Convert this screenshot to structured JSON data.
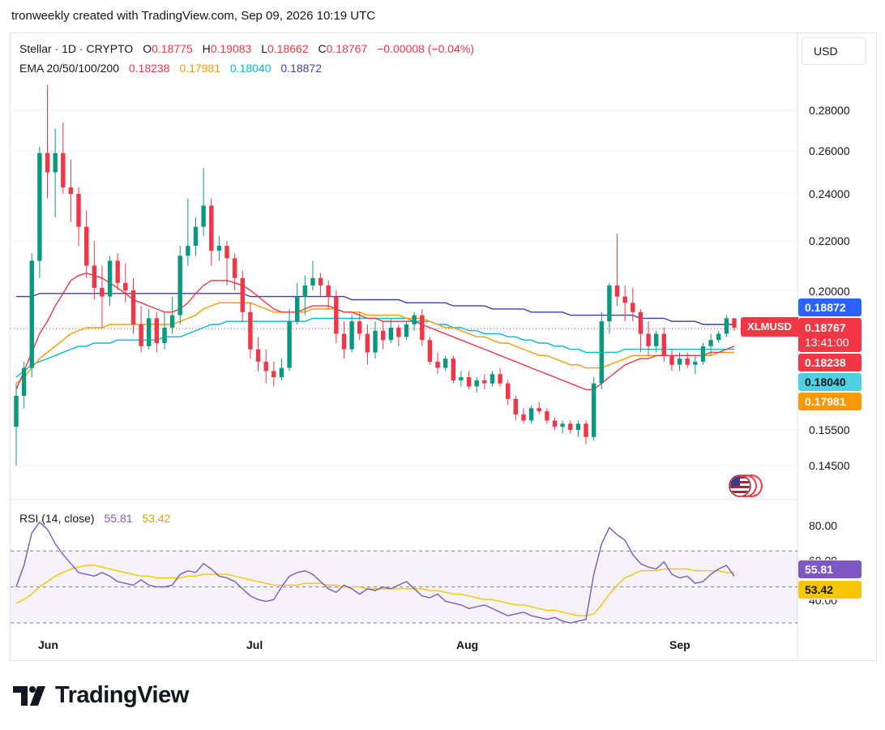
{
  "header": {
    "text": "tronweekly created with TradingView.com, Sep 09, 2026 10:19 UTC"
  },
  "legend": {
    "symbol": "Stellar · 1D · CRYPTO",
    "open_label": "O",
    "open": "0.18775",
    "high_label": "H",
    "high": "0.19083",
    "low_label": "L",
    "low": "0.18662",
    "close_label": "C",
    "close": "0.18767",
    "change": "−0.00008 (−0.04%)",
    "ema_label": "EMA 20/50/100/200",
    "ema20": "0.18238",
    "ema50": "0.17981",
    "ema100": "0.18040",
    "ema200": "0.18872"
  },
  "currency": "USD",
  "price_axis": [
    "0.28000",
    "0.26000",
    "0.24000",
    "0.22000",
    "0.20000",
    "0.15500",
    "0.14500"
  ],
  "price_tags": {
    "ema200": "0.18872",
    "close": "0.18767",
    "countdown": "13:41:00",
    "ema20": "0.18238",
    "ema100": "0.18040",
    "ema50": "0.17981",
    "symbol": "XLMUSD"
  },
  "rsi": {
    "label": "RSI (14, close)",
    "value": "55.81",
    "ma": "53.42",
    "axis": [
      "80.00",
      "60.00",
      "40.00"
    ]
  },
  "x_ticks": [
    "Jun",
    "Jul",
    "Aug",
    "Sep"
  ],
  "brand": "TradingView",
  "colors": {
    "up": "#089981",
    "down": "#f23645",
    "ema20": "#f23645",
    "ema50": "#ff9800",
    "ema100": "#00bcd4",
    "ema200": "#3f3fb0",
    "rsi": "#7e57c2",
    "rsi_ma": "#f7c600"
  },
  "chart_data": {
    "type": "candlestick",
    "title": "Stellar · 1D · CRYPTO",
    "ylim": [
      0.143,
      0.298
    ],
    "dates_start": "2026-05-23",
    "candles": [
      [
        0.156,
        0.17,
        0.145,
        0.166
      ],
      [
        0.166,
        0.177,
        0.162,
        0.175
      ],
      [
        0.175,
        0.215,
        0.172,
        0.212
      ],
      [
        0.212,
        0.262,
        0.205,
        0.259
      ],
      [
        0.259,
        0.293,
        0.238,
        0.25
      ],
      [
        0.25,
        0.271,
        0.23,
        0.259
      ],
      [
        0.259,
        0.274,
        0.24,
        0.243
      ],
      [
        0.243,
        0.256,
        0.228,
        0.24
      ],
      [
        0.24,
        0.243,
        0.218,
        0.226
      ],
      [
        0.226,
        0.233,
        0.205,
        0.21
      ],
      [
        0.21,
        0.22,
        0.197,
        0.201
      ],
      [
        0.201,
        0.21,
        0.188,
        0.198
      ],
      [
        0.198,
        0.214,
        0.195,
        0.212
      ],
      [
        0.212,
        0.215,
        0.2,
        0.203
      ],
      [
        0.203,
        0.211,
        0.196,
        0.2
      ],
      [
        0.2,
        0.205,
        0.186,
        0.189
      ],
      [
        0.189,
        0.195,
        0.18,
        0.182
      ],
      [
        0.182,
        0.194,
        0.181,
        0.191
      ],
      [
        0.191,
        0.193,
        0.18,
        0.183
      ],
      [
        0.183,
        0.193,
        0.181,
        0.188
      ],
      [
        0.188,
        0.198,
        0.186,
        0.192
      ],
      [
        0.192,
        0.218,
        0.189,
        0.214
      ],
      [
        0.214,
        0.238,
        0.21,
        0.218
      ],
      [
        0.218,
        0.23,
        0.214,
        0.226
      ],
      [
        0.226,
        0.252,
        0.222,
        0.235
      ],
      [
        0.235,
        0.238,
        0.21,
        0.216
      ],
      [
        0.216,
        0.222,
        0.212,
        0.218
      ],
      [
        0.218,
        0.22,
        0.202,
        0.213
      ],
      [
        0.213,
        0.215,
        0.2,
        0.205
      ],
      [
        0.205,
        0.208,
        0.19,
        0.193
      ],
      [
        0.193,
        0.196,
        0.178,
        0.181
      ],
      [
        0.181,
        0.185,
        0.174,
        0.177
      ],
      [
        0.177,
        0.181,
        0.17,
        0.174
      ],
      [
        0.174,
        0.177,
        0.169,
        0.172
      ],
      [
        0.172,
        0.178,
        0.171,
        0.175
      ],
      [
        0.175,
        0.194,
        0.174,
        0.19
      ],
      [
        0.19,
        0.203,
        0.189,
        0.198
      ],
      [
        0.198,
        0.206,
        0.192,
        0.202
      ],
      [
        0.202,
        0.212,
        0.2,
        0.205
      ],
      [
        0.205,
        0.207,
        0.198,
        0.202
      ],
      [
        0.202,
        0.204,
        0.194,
        0.198
      ],
      [
        0.198,
        0.2,
        0.183,
        0.186
      ],
      [
        0.186,
        0.19,
        0.178,
        0.181
      ],
      [
        0.181,
        0.192,
        0.18,
        0.19
      ],
      [
        0.19,
        0.193,
        0.184,
        0.186
      ],
      [
        0.186,
        0.189,
        0.176,
        0.18
      ],
      [
        0.18,
        0.19,
        0.178,
        0.187
      ],
      [
        0.187,
        0.19,
        0.181,
        0.184
      ],
      [
        0.184,
        0.191,
        0.183,
        0.188
      ],
      [
        0.188,
        0.189,
        0.182,
        0.185
      ],
      [
        0.185,
        0.19,
        0.184,
        0.189
      ],
      [
        0.189,
        0.193,
        0.187,
        0.192
      ],
      [
        0.192,
        0.194,
        0.182,
        0.184
      ],
      [
        0.184,
        0.185,
        0.176,
        0.177
      ],
      [
        0.177,
        0.18,
        0.173,
        0.175
      ],
      [
        0.175,
        0.179,
        0.174,
        0.178
      ],
      [
        0.178,
        0.179,
        0.17,
        0.171
      ],
      [
        0.171,
        0.174,
        0.169,
        0.172
      ],
      [
        0.172,
        0.174,
        0.168,
        0.169
      ],
      [
        0.169,
        0.172,
        0.167,
        0.171
      ],
      [
        0.171,
        0.173,
        0.168,
        0.17
      ],
      [
        0.17,
        0.174,
        0.169,
        0.173
      ],
      [
        0.173,
        0.175,
        0.169,
        0.17
      ],
      [
        0.17,
        0.171,
        0.163,
        0.165
      ],
      [
        0.165,
        0.166,
        0.158,
        0.16
      ],
      [
        0.16,
        0.162,
        0.157,
        0.158
      ],
      [
        0.158,
        0.163,
        0.157,
        0.162
      ],
      [
        0.162,
        0.164,
        0.16,
        0.161
      ],
      [
        0.161,
        0.162,
        0.157,
        0.158
      ],
      [
        0.158,
        0.159,
        0.155,
        0.156
      ],
      [
        0.156,
        0.158,
        0.154,
        0.157
      ],
      [
        0.157,
        0.158,
        0.154,
        0.155
      ],
      [
        0.155,
        0.158,
        0.153,
        0.157
      ],
      [
        0.157,
        0.158,
        0.151,
        0.153
      ],
      [
        0.153,
        0.172,
        0.152,
        0.17
      ],
      [
        0.17,
        0.193,
        0.168,
        0.19
      ],
      [
        0.19,
        0.203,
        0.186,
        0.202
      ],
      [
        0.202,
        0.223,
        0.195,
        0.198
      ],
      [
        0.198,
        0.202,
        0.19,
        0.196
      ],
      [
        0.196,
        0.201,
        0.19,
        0.193
      ],
      [
        0.193,
        0.194,
        0.18,
        0.186
      ],
      [
        0.186,
        0.19,
        0.179,
        0.182
      ],
      [
        0.182,
        0.187,
        0.18,
        0.186
      ],
      [
        0.186,
        0.188,
        0.177,
        0.179
      ],
      [
        0.179,
        0.181,
        0.174,
        0.176
      ],
      [
        0.176,
        0.18,
        0.174,
        0.178
      ],
      [
        0.178,
        0.18,
        0.175,
        0.176
      ],
      [
        0.176,
        0.179,
        0.173,
        0.177
      ],
      [
        0.177,
        0.183,
        0.176,
        0.182
      ],
      [
        0.182,
        0.186,
        0.179,
        0.184
      ],
      [
        0.184,
        0.187,
        0.183,
        0.186
      ],
      [
        0.186,
        0.192,
        0.185,
        0.191
      ],
      [
        0.191,
        0.191,
        0.187,
        0.188
      ]
    ],
    "ema20": [
      0.168,
      0.174,
      0.18,
      0.186,
      0.19,
      0.195,
      0.199,
      0.204,
      0.206,
      0.207,
      0.206,
      0.205,
      0.203,
      0.201,
      0.199,
      0.197,
      0.196,
      0.195,
      0.194,
      0.193,
      0.193,
      0.194,
      0.196,
      0.199,
      0.202,
      0.204,
      0.204,
      0.204,
      0.203,
      0.202,
      0.2,
      0.198,
      0.196,
      0.194,
      0.193,
      0.193,
      0.193,
      0.194,
      0.195,
      0.195,
      0.195,
      0.194,
      0.193,
      0.193,
      0.192,
      0.191,
      0.191,
      0.19,
      0.19,
      0.19,
      0.19,
      0.19,
      0.189,
      0.188,
      0.187,
      0.186,
      0.185,
      0.184,
      0.183,
      0.182,
      0.181,
      0.18,
      0.179,
      0.178,
      0.177,
      0.176,
      0.175,
      0.174,
      0.173,
      0.172,
      0.171,
      0.17,
      0.169,
      0.168,
      0.168,
      0.17,
      0.172,
      0.174,
      0.176,
      0.177,
      0.178,
      0.178,
      0.179,
      0.179,
      0.179,
      0.179,
      0.179,
      0.179,
      0.179,
      0.18,
      0.18,
      0.181,
      0.182
    ],
    "ema50": [
      0.17,
      0.172,
      0.175,
      0.178,
      0.18,
      0.182,
      0.184,
      0.186,
      0.187,
      0.188,
      0.188,
      0.188,
      0.189,
      0.189,
      0.189,
      0.189,
      0.189,
      0.189,
      0.189,
      0.189,
      0.189,
      0.19,
      0.191,
      0.192,
      0.194,
      0.195,
      0.196,
      0.196,
      0.196,
      0.196,
      0.196,
      0.195,
      0.194,
      0.193,
      0.193,
      0.193,
      0.193,
      0.193,
      0.194,
      0.194,
      0.194,
      0.194,
      0.193,
      0.193,
      0.193,
      0.192,
      0.192,
      0.192,
      0.192,
      0.192,
      0.191,
      0.191,
      0.191,
      0.19,
      0.189,
      0.188,
      0.188,
      0.187,
      0.186,
      0.185,
      0.185,
      0.184,
      0.183,
      0.183,
      0.182,
      0.181,
      0.18,
      0.179,
      0.179,
      0.178,
      0.177,
      0.176,
      0.176,
      0.175,
      0.175,
      0.175,
      0.176,
      0.177,
      0.178,
      0.179,
      0.179,
      0.179,
      0.179,
      0.179,
      0.179,
      0.179,
      0.179,
      0.179,
      0.179,
      0.179,
      0.18,
      0.18,
      0.18
    ],
    "ema100": [
      0.172,
      0.174,
      0.176,
      0.177,
      0.178,
      0.179,
      0.18,
      0.181,
      0.182,
      0.182,
      0.183,
      0.183,
      0.183,
      0.184,
      0.184,
      0.184,
      0.184,
      0.184,
      0.184,
      0.185,
      0.185,
      0.185,
      0.186,
      0.187,
      0.188,
      0.189,
      0.189,
      0.19,
      0.19,
      0.19,
      0.19,
      0.19,
      0.19,
      0.19,
      0.19,
      0.19,
      0.19,
      0.19,
      0.191,
      0.191,
      0.191,
      0.191,
      0.191,
      0.191,
      0.191,
      0.191,
      0.191,
      0.191,
      0.191,
      0.191,
      0.191,
      0.19,
      0.19,
      0.19,
      0.189,
      0.189,
      0.188,
      0.188,
      0.187,
      0.187,
      0.186,
      0.186,
      0.186,
      0.185,
      0.185,
      0.184,
      0.184,
      0.183,
      0.183,
      0.182,
      0.182,
      0.181,
      0.181,
      0.18,
      0.18,
      0.18,
      0.18,
      0.18,
      0.181,
      0.181,
      0.181,
      0.181,
      0.181,
      0.181,
      0.181,
      0.181,
      0.181,
      0.181,
      0.181,
      0.181,
      0.181,
      0.181,
      0.181
    ],
    "ema200": [
      0.198,
      0.198,
      0.198,
      0.199,
      0.199,
      0.199,
      0.199,
      0.199,
      0.199,
      0.199,
      0.199,
      0.199,
      0.199,
      0.199,
      0.199,
      0.199,
      0.199,
      0.199,
      0.199,
      0.199,
      0.199,
      0.199,
      0.199,
      0.199,
      0.199,
      0.199,
      0.199,
      0.199,
      0.199,
      0.199,
      0.198,
      0.198,
      0.198,
      0.198,
      0.198,
      0.198,
      0.198,
      0.198,
      0.198,
      0.198,
      0.198,
      0.198,
      0.198,
      0.197,
      0.197,
      0.197,
      0.197,
      0.197,
      0.197,
      0.197,
      0.196,
      0.196,
      0.196,
      0.196,
      0.196,
      0.196,
      0.195,
      0.195,
      0.195,
      0.195,
      0.195,
      0.194,
      0.194,
      0.194,
      0.194,
      0.194,
      0.193,
      0.193,
      0.193,
      0.193,
      0.193,
      0.192,
      0.192,
      0.192,
      0.192,
      0.192,
      0.192,
      0.192,
      0.192,
      0.192,
      0.191,
      0.191,
      0.191,
      0.191,
      0.19,
      0.19,
      0.19,
      0.19,
      0.189,
      0.189,
      0.189,
      0.189,
      0.189
    ],
    "rsi_ylim": [
      30,
      85
    ],
    "rsi_levels": [
      70,
      50,
      30
    ],
    "rsi_values": [
      50,
      62,
      80,
      86,
      82,
      74,
      68,
      63,
      58,
      57,
      56,
      58,
      56,
      53,
      52,
      51,
      54,
      51,
      50,
      50,
      51,
      57,
      59,
      58,
      63,
      60,
      56,
      55,
      53,
      49,
      45,
      43,
      42,
      43,
      50,
      56,
      58,
      59,
      57,
      53,
      49,
      47,
      51,
      49,
      46,
      49,
      48,
      50,
      49,
      51,
      53,
      49,
      45,
      44,
      46,
      42,
      41,
      40,
      38,
      39,
      40,
      38,
      36,
      34,
      35,
      36,
      34,
      33,
      32,
      33,
      31,
      30,
      31,
      32,
      57,
      74,
      83,
      79,
      76,
      68,
      63,
      61,
      60,
      64,
      57,
      55,
      56,
      52,
      53,
      57,
      60,
      62,
      56
    ],
    "rsi_ma_values": [
      41,
      43,
      46,
      50,
      53,
      56,
      58,
      60,
      61,
      62,
      62,
      61,
      60,
      59,
      58,
      57,
      56,
      56,
      55,
      55,
      55,
      55,
      56,
      56,
      57,
      57,
      57,
      57,
      56,
      55,
      54,
      53,
      52,
      51,
      51,
      51,
      51,
      52,
      52,
      52,
      51,
      51,
      50,
      50,
      50,
      49,
      49,
      49,
      49,
      49,
      49,
      49,
      49,
      48,
      48,
      47,
      46,
      46,
      45,
      44,
      43,
      43,
      42,
      41,
      40,
      40,
      39,
      38,
      37,
      37,
      36,
      35,
      34,
      34,
      35,
      40,
      46,
      51,
      55,
      57,
      59,
      59,
      59,
      60,
      60,
      60,
      60,
      59,
      59,
      59,
      59,
      58,
      58
    ]
  }
}
